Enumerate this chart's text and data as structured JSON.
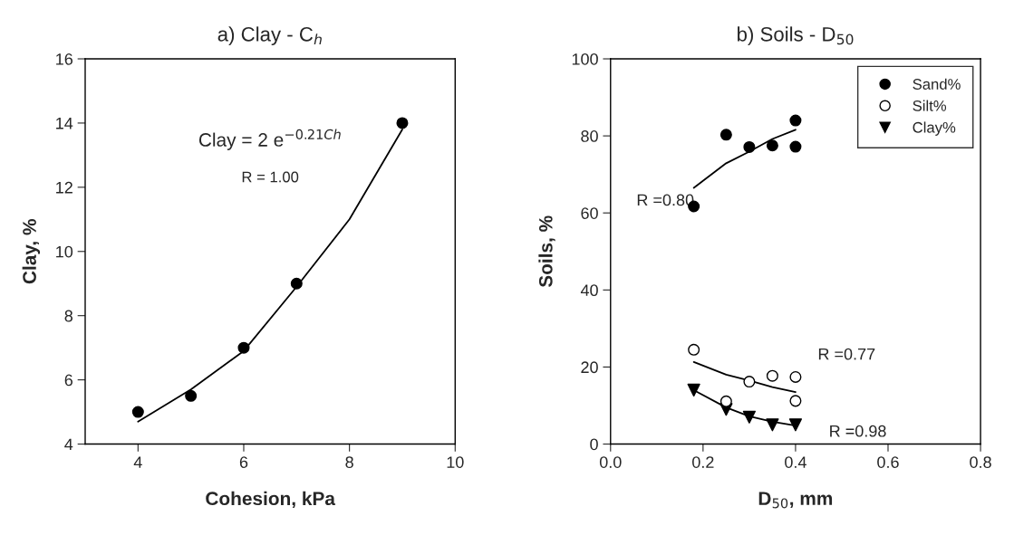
{
  "chart_data": [
    {
      "type": "scatter",
      "title": "a) Clay - C$_{h}$",
      "xlabel": "Cohesion, kPa",
      "ylabel": "Clay, %",
      "xlim": [
        3,
        10
      ],
      "xticks": [
        4,
        6,
        8,
        10
      ],
      "ylim": [
        4,
        16
      ],
      "yticks": [
        4,
        6,
        8,
        10,
        12,
        14,
        16
      ],
      "grid": false,
      "legend": false,
      "series": [
        {
          "marker": "circle",
          "color": "#000000",
          "x": [
            4,
            5,
            6,
            7,
            9
          ],
          "values": [
            5.0,
            5.5,
            7.0,
            9.0,
            14.0
          ]
        },
        {
          "type": "line",
          "marker": "none",
          "color": "#000000",
          "x": [
            4,
            5,
            6,
            7,
            8,
            9
          ],
          "values": [
            4.7,
            5.7,
            6.9,
            8.9,
            11.0,
            13.8
          ]
        }
      ],
      "annotations": [
        "Clay = 2 e$^{−0.21Ch}$",
        "R = 1.00"
      ]
    },
    {
      "type": "scatter",
      "title": "b) Soils - D$_{50}$",
      "xlabel": "D$_{50}$, mm",
      "ylabel": "Soils, %",
      "xlim": [
        0.0,
        0.8
      ],
      "xticks": [
        {
          "value": 0.0,
          "label": "0.0"
        },
        {
          "value": 0.2,
          "label": "0.2"
        },
        {
          "value": 0.4,
          "label": "0.4"
        },
        {
          "value": 0.6,
          "label": "0.6"
        },
        {
          "value": 0.8,
          "label": "0.8"
        }
      ],
      "ylim": [
        0,
        100
      ],
      "yticks": [
        0,
        20,
        40,
        60,
        80,
        100
      ],
      "grid": false,
      "legend": "top right",
      "series": [
        {
          "name": "Sand%",
          "marker": "circle",
          "color": "#000000",
          "x": [
            0.18,
            0.25,
            0.3,
            0.35,
            0.4,
            0.4
          ],
          "values": [
            61.7,
            80.3,
            77.1,
            77.5,
            84.0,
            77.2
          ]
        },
        {
          "name": "Silt%",
          "marker": "circle",
          "color": "#ffffff",
          "x": [
            0.18,
            0.25,
            0.3,
            0.35,
            0.4,
            0.4
          ],
          "values": [
            24.5,
            11.1,
            16.2,
            17.7,
            17.4,
            11.2
          ]
        },
        {
          "name": "Clay%",
          "marker": "triangle",
          "color": "#000000",
          "x": [
            0.18,
            0.25,
            0.3,
            0.35,
            0.4
          ],
          "values": [
            14,
            9,
            7,
            5,
            5
          ]
        },
        {
          "type": "line",
          "marker": "none",
          "color": "#000000",
          "x": [
            0.18,
            0.25,
            0.3,
            0.35,
            0.4
          ],
          "values": [
            66.5,
            72.9,
            75.9,
            79.2,
            81.6
          ]
        },
        {
          "type": "line",
          "marker": "none",
          "color": "#000000",
          "x": [
            0.18,
            0.25,
            0.3,
            0.35,
            0.4
          ],
          "values": [
            21.3,
            18.0,
            16.5,
            14.8,
            13.5
          ]
        },
        {
          "type": "line",
          "marker": "none",
          "color": "#000000",
          "x": [
            0.18,
            0.25,
            0.3,
            0.35,
            0.4
          ],
          "values": [
            14.0,
            9.5,
            7.2,
            5.8,
            4.8
          ]
        }
      ],
      "annotations": [
        "R =0.80",
        "R =0.77",
        "R =0.98"
      ]
    }
  ]
}
